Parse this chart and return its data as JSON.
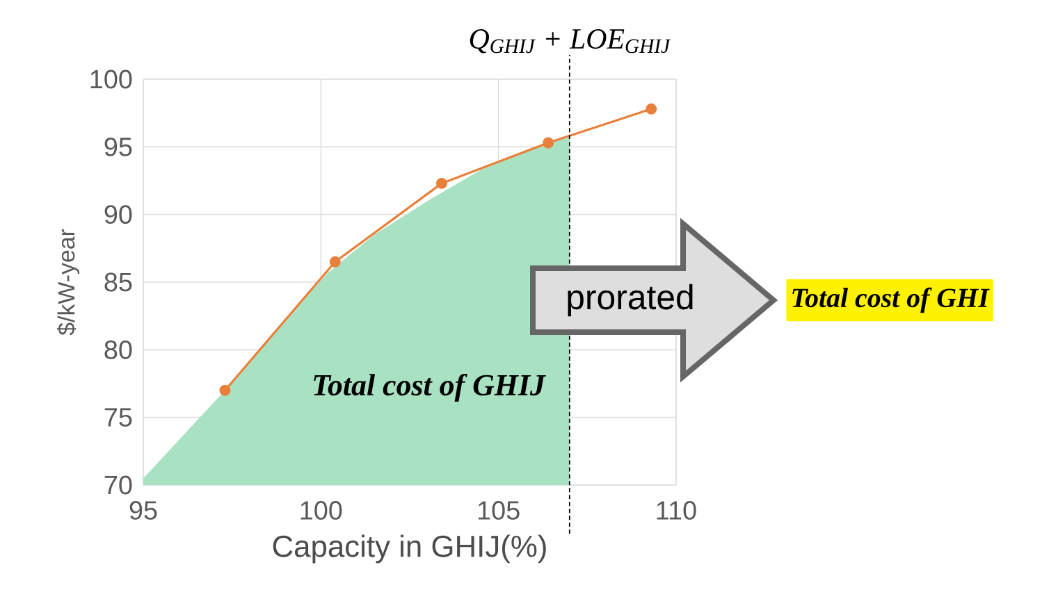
{
  "chart_data": {
    "type": "line",
    "xlabel": "Capacity in GHIJ(%)",
    "ylabel": "$/kW-year",
    "xlim": [
      95,
      110
    ],
    "ylim": [
      70,
      100
    ],
    "xticks": [
      95,
      100,
      105,
      110
    ],
    "yticks": [
      70,
      75,
      80,
      85,
      90,
      95,
      100
    ],
    "grid": true,
    "series": [
      {
        "type": "area",
        "color": "#a9e2c3",
        "x": [
          95,
          97.3,
          98.9,
          100.2,
          101.5,
          103,
          104.5,
          106.4,
          107
        ],
        "values": [
          70.5,
          77,
          82,
          85.7,
          88.5,
          91,
          93.3,
          95.3,
          95.7
        ]
      },
      {
        "color": "#e8803a",
        "marker": "circle",
        "line_style": "solid",
        "x": [
          97.3,
          100.4,
          103.4,
          106.4,
          109.3
        ],
        "values": [
          77,
          86.5,
          92.3,
          95.3,
          97.8
        ]
      }
    ],
    "ref_lines": [
      {
        "axis": "x",
        "value": 107,
        "label": "Q$_{GHIJ}$ + LOE$_{GHIJ}$",
        "line_style": "dashed",
        "color": "#000000"
      }
    ],
    "annotations": [
      "Total cost of GHIJ",
      "prorated",
      "Total cost of GHI"
    ]
  }
}
